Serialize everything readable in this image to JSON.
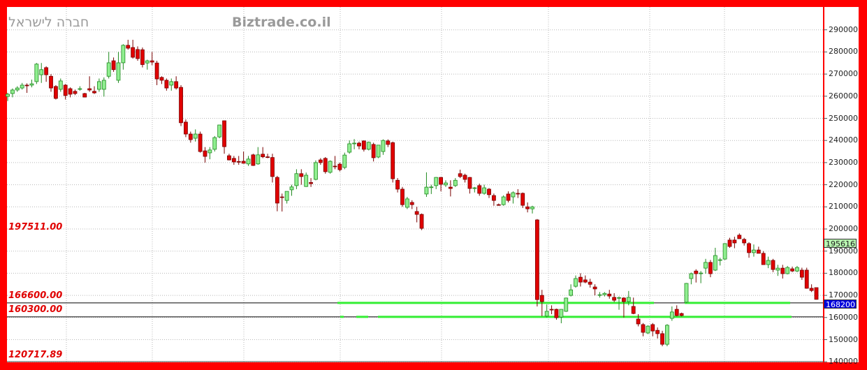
{
  "header": {
    "company_name": "חברה לישראל",
    "site": "Biztrade.co.il"
  },
  "colors": {
    "up": "#90ee90",
    "up_border": "#1f8a1f",
    "down": "#e00000",
    "down_border": "#7a0000",
    "frame": "#ff0000",
    "level_line": "#33ee33",
    "last_price_box": "#0000dd",
    "marker_box": "#b8f5b0"
  },
  "level_labels": [
    "197511.00",
    "166600.00",
    "160300.00",
    "120717.89"
  ],
  "price_boxes": {
    "marker": "195616",
    "last": "168200"
  },
  "chart_data": {
    "type": "candlestick",
    "title": "",
    "ylim": [
      140000,
      295000
    ],
    "y_ticks": [
      "290000",
      "280000",
      "270000",
      "260000",
      "250000",
      "240000",
      "230000",
      "220000",
      "210000",
      "200000",
      "190000",
      "180000",
      "170000",
      "160000",
      "150000",
      "140000"
    ],
    "grid": true,
    "horizontal_levels": [
      166600,
      160300
    ],
    "candles_ohlc": [
      [
        259900,
        261500,
        257800,
        260900
      ],
      [
        261200,
        263500,
        259500,
        262800
      ],
      [
        262800,
        264500,
        262000,
        263700
      ],
      [
        263700,
        266000,
        263000,
        265000
      ],
      [
        265000,
        265800,
        261500,
        264700
      ],
      [
        265000,
        267500,
        264000,
        265600
      ],
      [
        266600,
        275000,
        265500,
        274500
      ],
      [
        269700,
        275000,
        266000,
        272000
      ],
      [
        272900,
        273500,
        266500,
        269700
      ],
      [
        269000,
        270000,
        262000,
        263700
      ],
      [
        264400,
        265000,
        258500,
        259000
      ],
      [
        263100,
        268000,
        262000,
        266900
      ],
      [
        265000,
        265500,
        258500,
        260300
      ],
      [
        263400,
        264000,
        259500,
        260900
      ],
      [
        262200,
        263000,
        260500,
        261200
      ],
      [
        263400,
        264500,
        262500,
        263400
      ],
      [
        261200,
        261500,
        259500,
        259600
      ],
      [
        263400,
        269000,
        262000,
        262800
      ],
      [
        262200,
        264500,
        261000,
        261500
      ],
      [
        263100,
        268000,
        262000,
        266600
      ],
      [
        263100,
        268500,
        259800,
        267200
      ],
      [
        269000,
        280000,
        268000,
        275100
      ],
      [
        276000,
        277500,
        271000,
        272000
      ],
      [
        267200,
        280000,
        266000,
        275100
      ],
      [
        275100,
        283500,
        272000,
        283000
      ],
      [
        283000,
        285500,
        281000,
        281700
      ],
      [
        282000,
        285500,
        277000,
        277600
      ],
      [
        281100,
        282500,
        276000,
        277000
      ],
      [
        281000,
        282000,
        273000,
        274300
      ],
      [
        275000,
        276500,
        272000,
        276000
      ],
      [
        276000,
        280000,
        274000,
        275400
      ],
      [
        275000,
        276000,
        265000,
        267800
      ],
      [
        268500,
        269000,
        265500,
        267200
      ],
      [
        267200,
        268000,
        262500,
        263700
      ],
      [
        265000,
        268000,
        262500,
        266600
      ],
      [
        266600,
        269000,
        263000,
        263700
      ],
      [
        264000,
        265000,
        246500,
        248000
      ],
      [
        248300,
        249500,
        241500,
        242900
      ],
      [
        242900,
        244000,
        239000,
        240400
      ],
      [
        241000,
        245000,
        239500,
        242900
      ],
      [
        242900,
        244000,
        234500,
        235000
      ],
      [
        235300,
        237000,
        230000,
        232800
      ],
      [
        234400,
        237000,
        231500,
        235700
      ],
      [
        236000,
        242000,
        235000,
        241300
      ],
      [
        241600,
        247000,
        241000,
        247000
      ],
      [
        248900,
        249000,
        234000,
        237200
      ],
      [
        233100,
        234000,
        231000,
        231200
      ],
      [
        231900,
        233000,
        229000,
        230300
      ],
      [
        230500,
        233000,
        229000,
        230300
      ],
      [
        230600,
        235000,
        229500,
        229700
      ],
      [
        229400,
        233000,
        228500,
        231600
      ],
      [
        233500,
        234000,
        228500,
        228700
      ],
      [
        229400,
        237000,
        229000,
        233500
      ],
      [
        233800,
        237000,
        232000,
        232600
      ],
      [
        232600,
        234000,
        232000,
        232300
      ],
      [
        232300,
        234000,
        221000,
        223700
      ],
      [
        223300,
        224000,
        208000,
        211700
      ],
      [
        214500,
        216000,
        207900,
        214300
      ],
      [
        212900,
        216000,
        211500,
        217000
      ],
      [
        217700,
        220000,
        215000,
        219000
      ],
      [
        219600,
        227000,
        218000,
        225000
      ],
      [
        225000,
        227000,
        220000,
        223700
      ],
      [
        219200,
        225500,
        219000,
        224300
      ],
      [
        221000,
        223000,
        219000,
        220500
      ],
      [
        222400,
        231000,
        222000,
        230000
      ],
      [
        231200,
        232000,
        229000,
        230000
      ],
      [
        231900,
        232500,
        225000,
        225900
      ],
      [
        225600,
        231000,
        225000,
        230600
      ],
      [
        228400,
        233000,
        227000,
        228200
      ],
      [
        229300,
        230000,
        226000,
        226800
      ],
      [
        227800,
        234500,
        227000,
        233400
      ],
      [
        234700,
        240000,
        234000,
        238500
      ],
      [
        238500,
        240600,
        236000,
        238800
      ],
      [
        238800,
        239500,
        236000,
        237500
      ],
      [
        239800,
        240000,
        235000,
        236000
      ],
      [
        236000,
        239500,
        235500,
        239200
      ],
      [
        238200,
        239000,
        230500,
        232200
      ],
      [
        232500,
        238000,
        232000,
        237900
      ],
      [
        235000,
        240500,
        233500,
        240000
      ],
      [
        239800,
        240500,
        237000,
        238200
      ],
      [
        239000,
        239500,
        221000,
        222700
      ],
      [
        222000,
        223000,
        216500,
        218000
      ],
      [
        218000,
        219000,
        210000,
        211000
      ],
      [
        209800,
        214500,
        209000,
        213600
      ],
      [
        212000,
        213000,
        209000,
        211000
      ],
      [
        207900,
        210000,
        203000,
        206600
      ],
      [
        206600,
        207000,
        199500,
        200300
      ],
      [
        215800,
        225600,
        214500,
        218900
      ],
      [
        218900,
        220000,
        215800,
        219000
      ],
      [
        219600,
        223500,
        218000,
        223300
      ],
      [
        223300,
        223500,
        217000,
        220200
      ],
      [
        219900,
        222000,
        219000,
        220800
      ],
      [
        218900,
        222000,
        214700,
        218300
      ],
      [
        219600,
        223000,
        219000,
        222000
      ],
      [
        225000,
        226800,
        223000,
        223700
      ],
      [
        224300,
        225000,
        221000,
        222400
      ],
      [
        223300,
        223500,
        216000,
        218300
      ],
      [
        218600,
        219000,
        216500,
        218600
      ],
      [
        219600,
        220500,
        215000,
        216100
      ],
      [
        216100,
        220000,
        215500,
        218600
      ],
      [
        218000,
        218500,
        214000,
        215500
      ],
      [
        215100,
        216000,
        210500,
        212900
      ],
      [
        211000,
        211500,
        210500,
        210700
      ],
      [
        211000,
        215200,
        210500,
        214500
      ],
      [
        215800,
        217000,
        212000,
        212900
      ],
      [
        214500,
        217000,
        211500,
        216400
      ],
      [
        216100,
        218000,
        214000,
        216000
      ],
      [
        216100,
        216500,
        209500,
        210700
      ],
      [
        210000,
        212000,
        207500,
        209100
      ],
      [
        209100,
        210500,
        207000,
        210000
      ],
      [
        204100,
        204500,
        165000,
        168100
      ],
      [
        170000,
        172500,
        160600,
        167200
      ],
      [
        160600,
        165900,
        160000,
        162800
      ],
      [
        163700,
        165500,
        161500,
        163400
      ],
      [
        163700,
        164000,
        159000,
        159900
      ],
      [
        160200,
        163800,
        157400,
        163700
      ],
      [
        162800,
        169000,
        162500,
        168800
      ],
      [
        170000,
        175000,
        169500,
        172500
      ],
      [
        174100,
        179000,
        173500,
        177600
      ],
      [
        178200,
        180000,
        174000,
        176000
      ],
      [
        177000,
        179000,
        175500,
        176000
      ],
      [
        176000,
        177500,
        173500,
        175000
      ],
      [
        173800,
        175000,
        170000,
        172900
      ],
      [
        170300,
        171500,
        169000,
        170300
      ],
      [
        170300,
        171500,
        169500,
        170900
      ],
      [
        170600,
        172500,
        168500,
        169700
      ],
      [
        169100,
        171000,
        167000,
        167800
      ],
      [
        169000,
        169500,
        163500,
        169000
      ],
      [
        168800,
        169200,
        160000,
        167200
      ],
      [
        167200,
        172000,
        165500,
        169100
      ],
      [
        165000,
        169000,
        161500,
        161800
      ],
      [
        159300,
        161500,
        156000,
        157100
      ],
      [
        156800,
        157500,
        151500,
        153300
      ],
      [
        153000,
        156500,
        152500,
        156100
      ],
      [
        156800,
        157500,
        151500,
        153900
      ],
      [
        154200,
        155500,
        150500,
        152700
      ],
      [
        152700,
        154000,
        147000,
        147900
      ],
      [
        147900,
        157000,
        147000,
        156500
      ],
      [
        159600,
        165000,
        158500,
        162500
      ],
      [
        163700,
        165500,
        160500,
        160900
      ],
      [
        161800,
        162200,
        160500,
        160900
      ],
      [
        166900,
        175600,
        166500,
        175400
      ],
      [
        177600,
        180300,
        175000,
        179800
      ],
      [
        181000,
        181800,
        175800,
        179800
      ],
      [
        180100,
        181000,
        175500,
        180100
      ],
      [
        182300,
        186500,
        179800,
        184900
      ],
      [
        184900,
        186000,
        178200,
        179800
      ],
      [
        181400,
        191500,
        181000,
        188000
      ],
      [
        186100,
        187000,
        183500,
        186100
      ],
      [
        186400,
        193600,
        186000,
        193400
      ],
      [
        195000,
        196000,
        191500,
        192100
      ],
      [
        195000,
        196500,
        191300,
        193700
      ],
      [
        197200,
        198000,
        196000,
        195600
      ],
      [
        195300,
        196000,
        192500,
        193700
      ],
      [
        193400,
        194000,
        187000,
        189300
      ],
      [
        189300,
        193000,
        187500,
        190500
      ],
      [
        190500,
        192000,
        189000,
        189000
      ],
      [
        189000,
        190000,
        183900,
        183900
      ],
      [
        183900,
        187500,
        182300,
        185800
      ],
      [
        185800,
        186500,
        180500,
        181700
      ],
      [
        181400,
        183800,
        178800,
        182300
      ],
      [
        182300,
        183800,
        177600,
        179800
      ],
      [
        179800,
        183300,
        179500,
        182600
      ],
      [
        182000,
        183000,
        180500,
        181000
      ],
      [
        181000,
        183300,
        180500,
        182600
      ],
      [
        181400,
        182500,
        177000,
        178200
      ],
      [
        181400,
        182500,
        173000,
        173200
      ],
      [
        173200,
        175000,
        171500,
        172200
      ],
      [
        173500,
        173500,
        168100,
        168200
      ]
    ]
  }
}
